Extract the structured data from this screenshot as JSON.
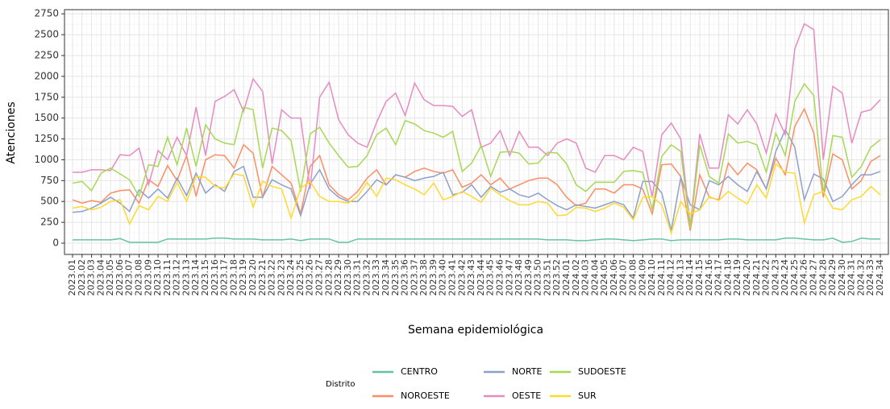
{
  "chart_data": {
    "type": "line",
    "x_label": "Semana epidemiológica",
    "y_label": "Atenciones",
    "legend_title": "Distrito",
    "categories": [
      "2023.01",
      "2023.02",
      "2023.03",
      "2023.04",
      "2023.05",
      "2023.06",
      "2023.07",
      "2023.08",
      "2023.09",
      "2023.10",
      "2023.11",
      "2023.12",
      "2023.13",
      "2023.14",
      "2023.15",
      "2023.16",
      "2023.17",
      "2023.18",
      "2023.19",
      "2023.20",
      "2023.21",
      "2023.22",
      "2023.23",
      "2023.24",
      "2023.25",
      "2023.26",
      "2023.27",
      "2023.28",
      "2023.29",
      "2023.30",
      "2023.31",
      "2023.32",
      "2023.33",
      "2023.34",
      "2023.35",
      "2023.36",
      "2023.37",
      "2023.38",
      "2023.39",
      "2023.40",
      "2023.41",
      "2023.42",
      "2023.43",
      "2023.44",
      "2023.45",
      "2023.46",
      "2023.47",
      "2023.48",
      "2023.49",
      "2023.50",
      "2023.51",
      "2023.52",
      "2024.01",
      "2024.02",
      "2024.03",
      "2024.04",
      "2024.05",
      "2024.06",
      "2024.07",
      "2024.08",
      "2024.09",
      "2024.10",
      "2024.11",
      "2024.12",
      "2024.13",
      "2024.14",
      "2024.15",
      "2024.16",
      "2024.17",
      "2024.18",
      "2024.19",
      "2024.20",
      "2024.21",
      "2024.22",
      "2024.23",
      "2024.24",
      "2024.25",
      "2024.26",
      "2024.27",
      "2024.28",
      "2024.29",
      "2024.30",
      "2024.31",
      "2024.32",
      "2024.33",
      "2024.34"
    ],
    "series": [
      {
        "name": "CENTRO",
        "color": "#66c2a5",
        "values": [
          40,
          40,
          40,
          40,
          40,
          55,
          10,
          10,
          10,
          10,
          50,
          50,
          50,
          50,
          50,
          60,
          60,
          50,
          50,
          50,
          40,
          40,
          40,
          50,
          30,
          50,
          50,
          50,
          10,
          10,
          50,
          50,
          50,
          50,
          50,
          50,
          50,
          50,
          50,
          50,
          50,
          50,
          50,
          50,
          50,
          50,
          50,
          50,
          50,
          50,
          40,
          40,
          40,
          30,
          30,
          40,
          50,
          50,
          40,
          30,
          40,
          50,
          50,
          30,
          40,
          40,
          40,
          40,
          40,
          50,
          50,
          40,
          40,
          40,
          40,
          60,
          60,
          50,
          40,
          40,
          60,
          10,
          20,
          60,
          50,
          50
        ]
      },
      {
        "name": "NOROESTE",
        "color": "#fc8d62",
        "values": [
          520,
          480,
          510,
          490,
          600,
          630,
          640,
          480,
          760,
          680,
          930,
          750,
          1050,
          560,
          1000,
          1060,
          1050,
          900,
          1180,
          1080,
          550,
          920,
          820,
          720,
          350,
          920,
          1050,
          700,
          580,
          520,
          620,
          780,
          880,
          700,
          820,
          790,
          860,
          900,
          860,
          840,
          880,
          670,
          720,
          820,
          700,
          780,
          650,
          700,
          750,
          780,
          780,
          700,
          550,
          450,
          480,
          650,
          650,
          600,
          700,
          700,
          650,
          350,
          940,
          950,
          800,
          150,
          820,
          550,
          520,
          960,
          820,
          960,
          880,
          650,
          1020,
          820,
          1400,
          1610,
          1320,
          550,
          1070,
          1000,
          650,
          750,
          980,
          1050
        ]
      },
      {
        "name": "NORTE",
        "color": "#8da0cb",
        "values": [
          370,
          380,
          420,
          480,
          550,
          480,
          380,
          640,
          540,
          650,
          540,
          780,
          570,
          840,
          600,
          700,
          620,
          860,
          920,
          550,
          550,
          760,
          700,
          650,
          330,
          710,
          880,
          650,
          550,
          500,
          500,
          620,
          760,
          700,
          820,
          790,
          750,
          780,
          800,
          850,
          580,
          610,
          700,
          550,
          680,
          610,
          650,
          580,
          550,
          600,
          520,
          450,
          400,
          460,
          440,
          420,
          460,
          500,
          460,
          300,
          740,
          740,
          600,
          150,
          790,
          460,
          400,
          750,
          700,
          800,
          700,
          620,
          860,
          650,
          1100,
          1360,
          1150,
          520,
          830,
          770,
          500,
          560,
          700,
          820,
          820,
          860
        ]
      },
      {
        "name": "OESTE",
        "color": "#e78ac3",
        "values": [
          850,
          850,
          880,
          880,
          870,
          1060,
          1050,
          1140,
          700,
          1110,
          1000,
          1270,
          1050,
          1630,
          1050,
          1700,
          1760,
          1840,
          1580,
          1970,
          1820,
          950,
          1600,
          1500,
          1500,
          650,
          1750,
          1930,
          1480,
          1300,
          1200,
          1150,
          1450,
          1700,
          1800,
          1530,
          1920,
          1720,
          1650,
          1650,
          1640,
          1520,
          1600,
          1150,
          1200,
          1350,
          1050,
          1340,
          1150,
          1150,
          1050,
          1200,
          1250,
          1200,
          900,
          850,
          1050,
          1050,
          1000,
          1150,
          1100,
          550,
          1300,
          1440,
          1250,
          200,
          1310,
          900,
          900,
          1540,
          1430,
          1600,
          1430,
          1080,
          1550,
          1300,
          2330,
          2630,
          2560,
          1000,
          1880,
          1800,
          1200,
          1570,
          1600,
          1720
        ]
      },
      {
        "name": "SUDOESTE",
        "color": "#a6d854",
        "values": [
          720,
          740,
          630,
          840,
          900,
          830,
          760,
          560,
          940,
          920,
          1270,
          940,
          1380,
          920,
          1420,
          1250,
          1200,
          1180,
          1630,
          1600,
          900,
          1380,
          1350,
          1230,
          620,
          1310,
          1390,
          1200,
          1050,
          910,
          920,
          1050,
          1300,
          1380,
          1180,
          1470,
          1430,
          1350,
          1320,
          1270,
          1340,
          860,
          960,
          1170,
          800,
          1090,
          1100,
          1080,
          950,
          960,
          1090,
          1080,
          950,
          700,
          620,
          730,
          730,
          730,
          860,
          870,
          850,
          400,
          1040,
          1180,
          1100,
          180,
          1180,
          800,
          720,
          1310,
          1200,
          1220,
          1180,
          850,
          1320,
          1050,
          1700,
          1910,
          1770,
          600,
          1290,
          1270,
          790,
          920,
          1150,
          1240
        ]
      },
      {
        "name": "SUR",
        "color": "#ffd92f",
        "values": [
          420,
          440,
          400,
          430,
          500,
          520,
          230,
          450,
          400,
          560,
          500,
          730,
          500,
          800,
          790,
          680,
          660,
          830,
          810,
          430,
          740,
          680,
          650,
          300,
          660,
          740,
          560,
          500,
          500,
          480,
          560,
          730,
          560,
          780,
          760,
          700,
          650,
          580,
          720,
          520,
          560,
          620,
          560,
          490,
          660,
          580,
          510,
          460,
          460,
          500,
          480,
          330,
          340,
          430,
          420,
          380,
          420,
          480,
          430,
          280,
          550,
          560,
          460,
          120,
          500,
          350,
          400,
          560,
          510,
          620,
          540,
          470,
          700,
          540,
          950,
          850,
          840,
          240,
          580,
          620,
          420,
          400,
          520,
          560,
          680,
          580
        ]
      }
    ],
    "ylim": [
      -135,
      2800
    ],
    "yticks": [
      0,
      250,
      500,
      750,
      1000,
      1250,
      1500,
      1750,
      2000,
      2250,
      2500,
      2750
    ],
    "grid": true
  }
}
